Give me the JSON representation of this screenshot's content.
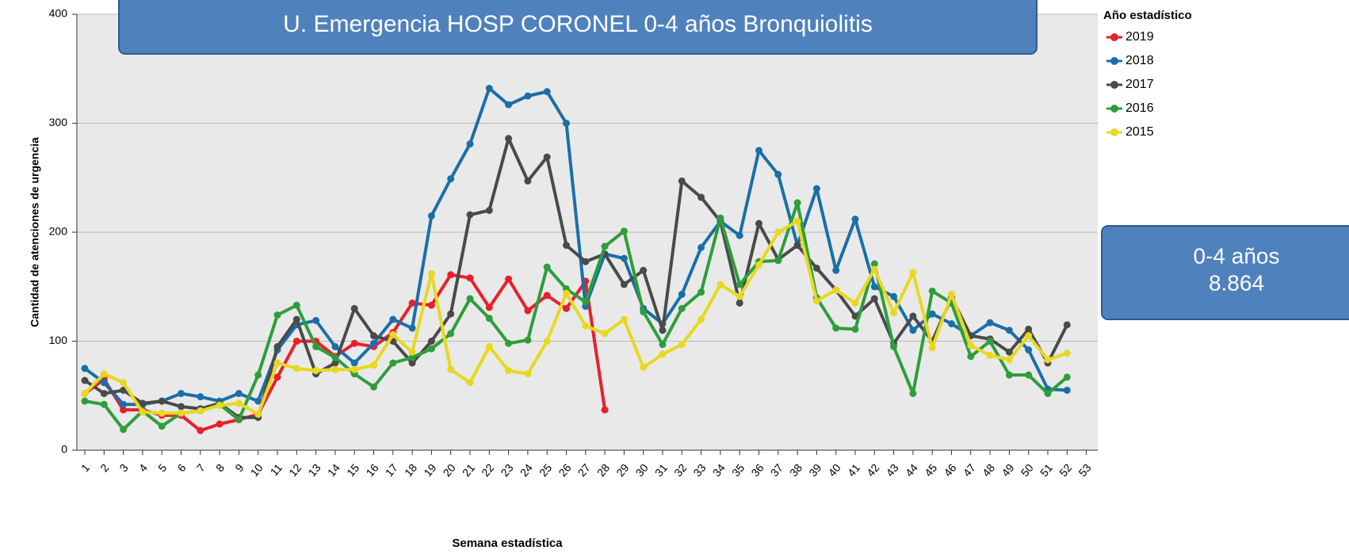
{
  "chart_data": {
    "type": "line",
    "title": "U. Emergencia HOSP CORONEL 0-4 años Bronquiolitis",
    "xlabel": "Semana estadística",
    "ylabel": "Cantidad de atenciones de urgencia",
    "legend_title": "Año estadístico",
    "legend_position": "right",
    "annotation": [
      "0-4 años",
      "8.864"
    ],
    "categories": [
      "1",
      "2",
      "3",
      "4",
      "5",
      "6",
      "7",
      "8",
      "9",
      "10",
      "11",
      "12",
      "13",
      "14",
      "15",
      "16",
      "17",
      "18",
      "19",
      "20",
      "21",
      "22",
      "23",
      "24",
      "25",
      "26",
      "27",
      "28",
      "29",
      "30",
      "31",
      "32",
      "33",
      "34",
      "35",
      "36",
      "37",
      "38",
      "39",
      "40",
      "41",
      "42",
      "43",
      "44",
      "45",
      "46",
      "47",
      "48",
      "49",
      "50",
      "51",
      "52",
      "53"
    ],
    "ylim": [
      0,
      400
    ],
    "yticks": [
      0,
      100,
      200,
      300,
      400
    ],
    "grid": true,
    "series": [
      {
        "name": "2019",
        "color": "#e8202a",
        "values": [
          52,
          65,
          37,
          37,
          32,
          32,
          18,
          24,
          28,
          33,
          67,
          100,
          100,
          86,
          98,
          95,
          108,
          135,
          133,
          161,
          158,
          131,
          157,
          128,
          142,
          130,
          155,
          37,
          null,
          null,
          null,
          null,
          null,
          null,
          null,
          null,
          null,
          null,
          null,
          null,
          null,
          null,
          null,
          null,
          null,
          null,
          null,
          null,
          null,
          null,
          null,
          null,
          null
        ]
      },
      {
        "name": "2018",
        "color": "#1a6fa8",
        "values": [
          75,
          62,
          42,
          42,
          45,
          52,
          49,
          45,
          52,
          45,
          92,
          115,
          119,
          95,
          80,
          98,
          120,
          112,
          215,
          249,
          281,
          332,
          317,
          325,
          329,
          300,
          132,
          180,
          176,
          130,
          116,
          143,
          186,
          210,
          197,
          275,
          253,
          188,
          240,
          165,
          212,
          150,
          141,
          110,
          125,
          116,
          105,
          117,
          110,
          92,
          56,
          55,
          null
        ]
      },
      {
        "name": "2017",
        "color": "#4a4a4a",
        "values": [
          64,
          52,
          55,
          43,
          45,
          40,
          38,
          43,
          30,
          30,
          95,
          120,
          70,
          80,
          130,
          105,
          100,
          80,
          100,
          125,
          216,
          220,
          286,
          247,
          269,
          188,
          173,
          180,
          152,
          165,
          110,
          247,
          232,
          210,
          135,
          208,
          175,
          188,
          167,
          147,
          123,
          139,
          98,
          123,
          100,
          140,
          105,
          102,
          90,
          111,
          80,
          115,
          null
        ]
      },
      {
        "name": "2016",
        "color": "#2e9e3a",
        "values": [
          45,
          42,
          19,
          36,
          22,
          34,
          36,
          42,
          28,
          69,
          124,
          133,
          95,
          85,
          70,
          58,
          80,
          85,
          93,
          107,
          139,
          121,
          98,
          101,
          168,
          148,
          136,
          187,
          201,
          127,
          97,
          130,
          145,
          213,
          152,
          173,
          174,
          227,
          140,
          112,
          111,
          171,
          95,
          52,
          146,
          135,
          86,
          100,
          69,
          69,
          52,
          67,
          null
        ]
      },
      {
        "name": "2015",
        "color": "#e8d820",
        "values": [
          52,
          70,
          62,
          35,
          34,
          34,
          36,
          41,
          43,
          33,
          80,
          75,
          73,
          74,
          74,
          78,
          106,
          90,
          162,
          74,
          62,
          95,
          73,
          70,
          100,
          144,
          114,
          107,
          120,
          76,
          88,
          97,
          120,
          152,
          141,
          170,
          200,
          210,
          137,
          147,
          135,
          166,
          126,
          163,
          94,
          143,
          96,
          87,
          83,
          105,
          83,
          89,
          null
        ]
      }
    ]
  }
}
